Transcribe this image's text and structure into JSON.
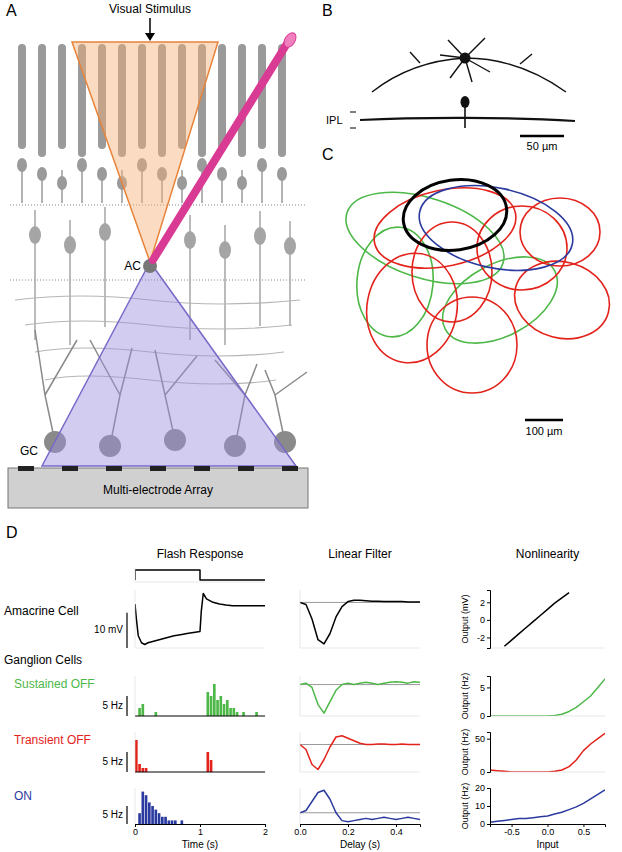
{
  "panel_labels": [
    "A",
    "B",
    "C",
    "D"
  ],
  "panel_a": {
    "stimulus": "Visual Stimulus",
    "ac": "AC",
    "gc": "GC",
    "array": "Multi-electrode Array"
  },
  "panel_b": {
    "layer": "IPL",
    "scale_bar": {
      "value": 50,
      "label": "50 µm"
    }
  },
  "panel_c": {
    "scale_bar": {
      "value": 100,
      "label": "100 µm"
    }
  },
  "panel_d": {
    "columns": [
      "Flash Response",
      "Linear Filter",
      "Nonlinearity"
    ],
    "group": "Ganglion Cells",
    "rows": [
      {
        "name": "Amacrine Cell",
        "color": "#000000"
      },
      {
        "name": "Sustained OFF",
        "color": "#4db848"
      },
      {
        "name": "Transient OFF",
        "color": "#e3231b"
      },
      {
        "name": "ON",
        "color": "#2b3a9e"
      }
    ]
  },
  "chart_data": [
    {
      "type": "line",
      "x": [
        0,
        0,
        1,
        1,
        2
      ],
      "values": [
        0,
        1,
        1,
        0,
        0
      ],
      "color": "#000000",
      "xlim": [
        0,
        2
      ],
      "ylim": [
        -0.2,
        1.2
      ],
      "tick_labels": false
    },
    {
      "type": "line",
      "x": [
        0,
        0.02,
        0.05,
        0.1,
        0.15,
        0.2,
        0.3,
        0.4,
        0.5,
        0.6,
        0.7,
        0.8,
        0.9,
        1.0,
        1.02,
        1.05,
        1.1,
        1.2,
        1.3,
        1.4,
        1.5,
        1.6,
        1.7,
        1.8,
        1.9,
        2.0
      ],
      "values": [
        0,
        -4,
        -9,
        -11,
        -11.5,
        -11,
        -10.5,
        -10,
        -9.5,
        -9,
        -8.7,
        -8.4,
        -8.1,
        -7.8,
        -2,
        3,
        1.5,
        0.5,
        0,
        -0.3,
        -0.5,
        -0.5,
        -0.5,
        -0.5,
        -0.5,
        -0.5
      ],
      "color": "#000000",
      "xlim": [
        0,
        2
      ],
      "ylim": [
        -12.5,
        4
      ],
      "tick_labels": false,
      "scale_bar": {
        "value": 10,
        "label": "10 mV"
      }
    },
    {
      "type": "histogram",
      "bins": [
        0,
        0.05,
        0.1,
        0.15,
        0.2,
        0.25,
        0.3,
        0.35,
        0.4,
        0.45,
        0.5,
        0.55,
        0.6,
        0.65,
        0.7,
        0.75,
        0.8,
        0.85,
        0.9,
        0.95,
        1,
        1.05,
        1.1,
        1.15,
        1.2,
        1.25,
        1.3,
        1.35,
        1.4,
        1.45,
        1.5,
        1.55,
        1.6,
        1.65,
        1.7,
        1.75,
        1.8,
        1.85,
        1.9,
        1.95,
        2
      ],
      "values": [
        0,
        2,
        3,
        0,
        0,
        0,
        1,
        0,
        0,
        0,
        0,
        0,
        0,
        0,
        0,
        0,
        0,
        0,
        0,
        0,
        0,
        0,
        6,
        5,
        8,
        4,
        5,
        3,
        4,
        2,
        2,
        1,
        0,
        1,
        0,
        0,
        0,
        1,
        0,
        0
      ],
      "color": "#4db848",
      "xlim": [
        0,
        2
      ],
      "ylim": [
        0,
        10
      ],
      "tick_labels": false,
      "scale_bar": {
        "value": 5,
        "label": "5 Hz"
      }
    },
    {
      "type": "histogram",
      "bins": [
        0,
        0.05,
        0.1,
        0.15,
        0.2,
        0.25,
        0.3,
        0.35,
        0.4,
        0.45,
        0.5,
        0.55,
        0.6,
        0.65,
        0.7,
        0.75,
        0.8,
        0.85,
        0.9,
        0.95,
        1,
        1.05,
        1.1,
        1.15,
        1.2,
        1.25,
        1.3,
        1.35,
        1.4,
        1.45,
        1.5,
        1.55,
        1.6,
        1.65,
        1.7,
        1.75,
        1.8,
        1.85,
        1.9,
        1.95,
        2
      ],
      "values": [
        8,
        2,
        1,
        1,
        0,
        0,
        0,
        0,
        0,
        0,
        0,
        0,
        0,
        0,
        0,
        0,
        0,
        0,
        0,
        0,
        0,
        0,
        5,
        3,
        0,
        0,
        0,
        0,
        0,
        0,
        0,
        0,
        0,
        0,
        0,
        0,
        0,
        0,
        0,
        0
      ],
      "color": "#e3231b",
      "xlim": [
        0,
        2
      ],
      "ylim": [
        0,
        10
      ],
      "tick_labels": false,
      "scale_bar": {
        "value": 5,
        "label": "5 Hz"
      }
    },
    {
      "type": "histogram",
      "bins": [
        0,
        0.05,
        0.1,
        0.15,
        0.2,
        0.25,
        0.3,
        0.35,
        0.4,
        0.45,
        0.5,
        0.55,
        0.6,
        0.65,
        0.7,
        0.75,
        0.8,
        0.85,
        0.9,
        0.95,
        1,
        1.05,
        1.1,
        1.15,
        1.2,
        1.25,
        1.3,
        1.35,
        1.4,
        1.45,
        1.5,
        1.55,
        1.6,
        1.65,
        1.7,
        1.75,
        1.8,
        1.85,
        1.9,
        1.95,
        2
      ],
      "values": [
        0,
        3,
        9,
        8,
        6,
        5,
        4,
        3,
        2,
        2,
        1,
        1,
        1,
        0,
        1,
        0,
        0,
        0,
        0,
        0,
        0,
        0,
        0,
        0,
        0,
        0,
        0,
        0,
        0,
        0,
        0,
        0,
        0,
        0,
        0,
        0,
        0,
        0,
        0,
        0
      ],
      "color": "#2b3a9e",
      "xlim": [
        0,
        2
      ],
      "ylim": [
        0,
        10
      ],
      "xticks": [
        0,
        1,
        2
      ],
      "xlabel": "Time (s)",
      "tick_labels": "x",
      "scale_bar": {
        "value": 5,
        "label": "5 Hz"
      }
    },
    {
      "type": "line",
      "x": [
        0,
        0.025,
        0.05,
        0.075,
        0.1,
        0.125,
        0.15,
        0.175,
        0.2,
        0.225,
        0.25,
        0.275,
        0.3,
        0.325,
        0.35,
        0.375,
        0.4,
        0.425,
        0.45,
        0.475,
        0.5
      ],
      "values": [
        0,
        -0.05,
        -0.4,
        -0.9,
        -1.0,
        -0.75,
        -0.35,
        -0.1,
        0.02,
        0.05,
        0.05,
        0.04,
        0.03,
        0.03,
        0.02,
        0.02,
        0.02,
        0.02,
        0.01,
        0.01,
        0.01
      ],
      "color": "#000000",
      "xlim": [
        0,
        0.5
      ],
      "ylim": [
        -1.1,
        0.3
      ],
      "yticks": [
        0
      ],
      "grid": true,
      "tick_labels": false
    },
    {
      "type": "line",
      "x": [
        0,
        0.025,
        0.05,
        0.075,
        0.1,
        0.125,
        0.15,
        0.175,
        0.2,
        0.225,
        0.25,
        0.275,
        0.3,
        0.325,
        0.35,
        0.375,
        0.4,
        0.425,
        0.45,
        0.475,
        0.5
      ],
      "values": [
        0,
        0.05,
        -0.1,
        -0.7,
        -1.0,
        -0.6,
        -0.2,
        0.0,
        0.05,
        0.0,
        0.05,
        0.08,
        0.05,
        0.0,
        0.05,
        0.08,
        0.1,
        0.08,
        0.05,
        0.1,
        0.08
      ],
      "color": "#4db848",
      "xlim": [
        0,
        0.5
      ],
      "ylim": [
        -1.1,
        0.3
      ],
      "yticks": [
        0
      ],
      "grid": true,
      "tick_labels": false
    },
    {
      "type": "line",
      "x": [
        0,
        0.025,
        0.05,
        0.075,
        0.1,
        0.125,
        0.15,
        0.175,
        0.2,
        0.225,
        0.25,
        0.275,
        0.3,
        0.325,
        0.35,
        0.375,
        0.4,
        0.425,
        0.45,
        0.475,
        0.5
      ],
      "values": [
        0,
        -0.2,
        -0.8,
        -1.0,
        -0.6,
        -0.1,
        0.3,
        0.35,
        0.25,
        0.15,
        0.05,
        0.0,
        0.0,
        0.02,
        0.02,
        0.0,
        0.0,
        0.02,
        0.0,
        0.0,
        0.0
      ],
      "color": "#e3231b",
      "xlim": [
        0,
        0.5
      ],
      "ylim": [
        -1.1,
        0.5
      ],
      "yticks": [
        0
      ],
      "grid": true,
      "tick_labels": false
    },
    {
      "type": "line",
      "x": [
        0,
        0.025,
        0.05,
        0.075,
        0.1,
        0.125,
        0.15,
        0.175,
        0.2,
        0.225,
        0.25,
        0.275,
        0.3,
        0.325,
        0.35,
        0.375,
        0.4,
        0.425,
        0.45,
        0.475,
        0.5
      ],
      "values": [
        0,
        0.1,
        0.5,
        0.9,
        1.0,
        0.6,
        0.0,
        -0.35,
        -0.4,
        -0.35,
        -0.3,
        -0.25,
        -0.3,
        -0.25,
        -0.2,
        -0.25,
        -0.3,
        -0.25,
        -0.2,
        -0.25,
        -0.3
      ],
      "color": "#2b3a9e",
      "xlim": [
        0,
        0.5
      ],
      "ylim": [
        -0.5,
        1.1
      ],
      "yticks": [
        0
      ],
      "grid": true,
      "xticks": [
        {
          "value": 0,
          "label": "0.0"
        },
        0.2,
        0.4
      ],
      "xlabel": "Delay (s)",
      "tick_labels": "x"
    },
    {
      "type": "line",
      "x": [
        -0.6,
        -0.5,
        -0.4,
        -0.3,
        -0.2,
        -0.1,
        0,
        0.1,
        0.2,
        0.3
      ],
      "values": [
        -3.0,
        -2.3,
        -1.6,
        -0.9,
        -0.2,
        0.5,
        1.2,
        1.9,
        2.5,
        3.1
      ],
      "color": "#000000",
      "xlim": [
        -0.8,
        0.8
      ],
      "ylim": [
        -3.2,
        3.4
      ],
      "yticks": [
        -2,
        0,
        2
      ],
      "ylabel": "Output (mV)",
      "tick_labels": "y"
    },
    {
      "type": "line",
      "x": [
        -0.8,
        -0.7,
        -0.6,
        -0.5,
        -0.4,
        -0.3,
        -0.2,
        -0.1,
        0,
        0.1,
        0.2,
        0.3,
        0.4,
        0.5,
        0.6,
        0.7,
        0.8
      ],
      "values": [
        0,
        0,
        0,
        0,
        0,
        0,
        0,
        0,
        0,
        0.1,
        0.3,
        0.8,
        1.5,
        2.5,
        3.5,
        5,
        6.5
      ],
      "color": "#4db848",
      "xlim": [
        -0.8,
        0.8
      ],
      "ylim": [
        0,
        7
      ],
      "yticks": [
        0,
        5
      ],
      "ylabel": "Output (Hz)",
      "tick_labels": "y"
    },
    {
      "type": "line",
      "x": [
        -0.8,
        -0.7,
        -0.6,
        -0.5,
        -0.4,
        -0.3,
        -0.2,
        -0.1,
        0,
        0.1,
        0.2,
        0.3,
        0.4,
        0.5,
        0.6,
        0.7,
        0.8
      ],
      "values": [
        3,
        2,
        1,
        0,
        0,
        0,
        0,
        0,
        0,
        1,
        3,
        8,
        18,
        32,
        42,
        50,
        58
      ],
      "color": "#e3231b",
      "xlim": [
        -0.8,
        0.8
      ],
      "ylim": [
        0,
        60
      ],
      "yticks": [
        0,
        50
      ],
      "ylabel": "Output (Hz)",
      "tick_labels": "y"
    },
    {
      "type": "line",
      "x": [
        -0.8,
        -0.7,
        -0.6,
        -0.5,
        -0.4,
        -0.3,
        -0.2,
        -0.1,
        0,
        0.1,
        0.2,
        0.3,
        0.4,
        0.5,
        0.6,
        0.7,
        0.8
      ],
      "values": [
        1,
        1.5,
        2,
        2.5,
        3,
        3,
        3.5,
        4,
        4.5,
        5.5,
        6.5,
        8,
        9.5,
        11.5,
        14,
        16.5,
        19
      ],
      "color": "#2b3a9e",
      "xlim": [
        -0.8,
        0.8
      ],
      "ylim": [
        0,
        20
      ],
      "yticks": [
        0,
        10,
        20
      ],
      "ylabel": "Output (Hz)",
      "xticks": [
        -0.5,
        {
          "value": 0,
          "label": "0.0"
        },
        0.5
      ],
      "xlabel": "Input",
      "tick_labels": true
    }
  ]
}
